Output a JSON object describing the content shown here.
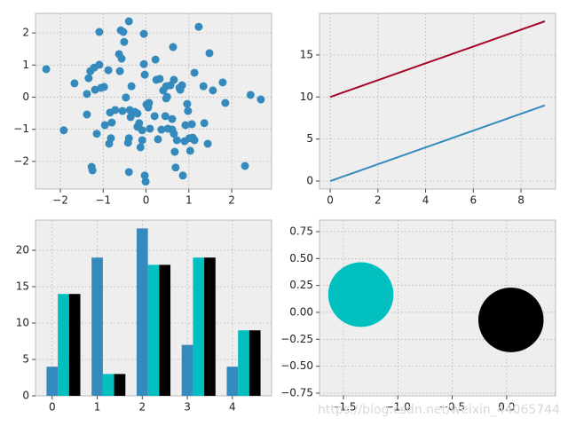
{
  "chart_data": [
    {
      "type": "scatter",
      "color": "#348ABD",
      "x": [
        -2.33,
        -1.92,
        -1.67,
        -1.38,
        -1.38,
        -1.34,
        -1.3,
        -1.25,
        -1.27,
        -1.21,
        -1.19,
        -1.15,
        -1.09,
        -1.09,
        -1.05,
        -0.96,
        -0.98,
        -0.88,
        -0.84,
        -0.86,
        -0.82,
        -0.8,
        -0.72,
        -0.63,
        -0.59,
        -0.61,
        -0.57,
        -0.53,
        -0.55,
        -0.51,
        -0.47,
        -0.42,
        -0.4,
        -0.4,
        -0.4,
        -0.38,
        -0.36,
        -0.34,
        -0.26,
        -0.2,
        -0.16,
        -0.13,
        -0.09,
        -0.09,
        -0.05,
        -0.05,
        -0.03,
        -0.01,
        0.01,
        0.05,
        0.07,
        0.09,
        0.2,
        0.22,
        0.24,
        0.28,
        0.32,
        0.36,
        0.4,
        0.45,
        0.47,
        0.47,
        0.49,
        0.51,
        0.57,
        0.61,
        0.63,
        0.65,
        0.65,
        0.67,
        0.69,
        0.72,
        0.78,
        0.8,
        0.84,
        0.86,
        0.9,
        0.92,
        0.96,
        0.98,
        1.01,
        1.03,
        1.07,
        1.09,
        1.13,
        1.13,
        1.23,
        1.34,
        1.36,
        1.44,
        1.48,
        1.56,
        1.79,
        1.85,
        2.31,
        2.44,
        2.68,
        0.61,
        -0.2,
        -0.03
      ],
      "y": [
        0.87,
        -1.03,
        0.43,
        -0.54,
        0.1,
        0.59,
        0.81,
        -2.28,
        -2.17,
        0.92,
        0.23,
        -1.14,
        2.03,
        1.01,
        0.29,
        -0.87,
        0.32,
        0.84,
        -0.48,
        -1.45,
        -1.28,
        -0.79,
        -0.4,
        1.34,
        2.08,
        0.81,
        1.2,
        2.03,
        -0.43,
        1.72,
        -0.01,
        -1.42,
        -1.28,
        -2.33,
        2.36,
        -0.4,
        -0.62,
        0.34,
        -0.46,
        -0.51,
        -0.81,
        -1.56,
        -1.34,
        -1.03,
        1.97,
        1.03,
        0.7,
        -2.63,
        -0.23,
        -0.32,
        -0.18,
        -0.98,
        -0.59,
        1.17,
        0.54,
        -1.31,
        0.57,
        -1.01,
        0.21,
        -0.59,
        0.34,
        -0.04,
        0.01,
        -0.98,
        0.37,
        -0.68,
        1.56,
        0.54,
        -1.14,
        -1.7,
        -2.19,
        -1.34,
        0.29,
        0.23,
        0.37,
        -2.44,
        -1.37,
        -0.87,
        -0.21,
        -0.43,
        -1.28,
        -1.67,
        -0.84,
        -1.26,
        0.76,
        -1.34,
        2.19,
        0.34,
        -0.81,
        -1.45,
        1.37,
        0.21,
        0.46,
        -0.18,
        -2.14,
        0.07,
        -0.07,
        -1.01,
        -0.92,
        -2.44
      ],
      "xlim": [
        -2.58,
        2.93
      ],
      "ylim": [
        -2.86,
        2.61
      ],
      "xticks": [
        {
          "value": -2,
          "label": "−2"
        },
        {
          "value": -1,
          "label": "−1"
        },
        0,
        1,
        2
      ],
      "yticks": [
        {
          "value": -2,
          "label": "−2"
        },
        {
          "value": -1,
          "label": "−1"
        },
        0,
        1,
        2
      ],
      "grid": true
    },
    {
      "type": "line",
      "x": [
        0,
        1,
        2,
        3,
        4,
        5,
        6,
        7,
        8,
        9
      ],
      "series": [
        {
          "color": "#348ABD",
          "values": [
            0,
            1,
            2,
            3,
            4,
            5,
            6,
            7,
            8,
            9
          ]
        },
        {
          "color": "#A60628",
          "values": [
            10,
            11,
            12,
            13,
            14,
            15,
            16,
            17,
            18,
            19
          ]
        }
      ],
      "xlim": [
        -0.45,
        9.45
      ],
      "ylim": [
        -0.95,
        19.95
      ],
      "xticks": [
        0,
        2,
        4,
        6,
        8
      ],
      "yticks": [
        0,
        5,
        10,
        15
      ],
      "grid": true
    },
    {
      "type": "bar",
      "x": [
        0,
        1,
        2,
        3,
        4
      ],
      "series": [
        {
          "color": "#348ABD",
          "values": [
            4,
            19,
            23,
            7,
            4
          ]
        },
        {
          "color": "#00BFBF",
          "values": [
            14,
            3,
            18,
            19,
            9
          ]
        },
        {
          "color": "#000000",
          "values": [
            14,
            3,
            18,
            19,
            9
          ]
        }
      ],
      "xlim": [
        -0.37,
        4.87
      ],
      "ylim": [
        0,
        24.15
      ],
      "xticks": [
        0,
        1,
        2,
        3,
        4
      ],
      "yticks": [
        0,
        5,
        10,
        15,
        20
      ],
      "grid": true
    },
    {
      "type": "patches",
      "circles": [
        {
          "x": -1.34,
          "y": 0.165,
          "r": 0.3,
          "color": "#00BFBF"
        },
        {
          "x": 0.04,
          "y": -0.07,
          "r": 0.3,
          "color": "#000000"
        }
      ],
      "xlim": [
        -1.72,
        0.45
      ],
      "ylim": [
        -0.775,
        0.857
      ],
      "xticks": [
        {
          "value": -1.5,
          "label": "−1.5"
        },
        {
          "value": -1.0,
          "label": "−1.0"
        },
        {
          "value": -0.5,
          "label": "−0.5"
        },
        {
          "value": 0,
          "label": "0.0"
        }
      ],
      "yticks": [
        {
          "value": -0.75,
          "label": "−0.75"
        },
        {
          "value": -0.5,
          "label": "−0.50"
        },
        {
          "value": -0.25,
          "label": "−0.25"
        },
        {
          "value": 0,
          "label": "0.00"
        },
        0.25,
        {
          "value": 0.5,
          "label": "0.50"
        },
        0.75
      ],
      "grid": true
    }
  ],
  "watermark": "https://blog.csdn.net/weixin_44065744"
}
